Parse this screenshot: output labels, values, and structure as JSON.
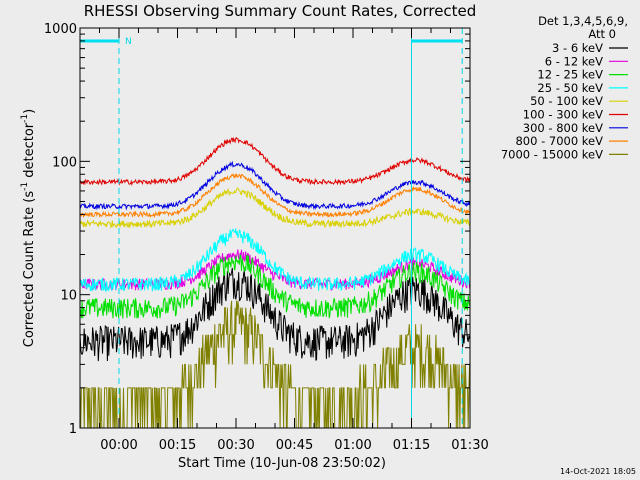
{
  "chart_data": {
    "type": "line",
    "title": "RHESSI Observing Summary Count Rates, Corrected",
    "xlabel": "Start Time (10-Jun-08 23:50:02)",
    "ylabel_main": "Corrected Count Rate (s",
    "ylabel_sup1": "-1",
    "ylabel_mid": " detector",
    "ylabel_sup2": "-1",
    "ylabel_end": ")",
    "y_scale": "log",
    "ylim": [
      1,
      1000
    ],
    "xlim_minutes": [
      0,
      100
    ],
    "x_ticks": [
      {
        "m": 10,
        "label": "00:00"
      },
      {
        "m": 25,
        "label": "00:15"
      },
      {
        "m": 40,
        "label": "00:30"
      },
      {
        "m": 55,
        "label": "00:45"
      },
      {
        "m": 70,
        "label": "01:00"
      },
      {
        "m": 85,
        "label": "01:15"
      },
      {
        "m": 100,
        "label": "01:30"
      }
    ],
    "y_ticks": [
      {
        "v": 1,
        "label": "1"
      },
      {
        "v": 10,
        "label": "10"
      },
      {
        "v": 100,
        "label": "100"
      },
      {
        "v": 1000,
        "label": "1000"
      }
    ],
    "legend_header": [
      "Det 1,3,4,5,6,9,",
      "Att 0"
    ],
    "legend_placement": "right",
    "timestamp": "14-Oct-2021 18:05",
    "flags": [
      {
        "label": "N",
        "start_min": 0,
        "end_min": 10
      },
      {
        "label": "",
        "start_min": 85,
        "end_min": 98
      }
    ],
    "vertical_markers": [
      {
        "minute": 10,
        "style": "dashed"
      },
      {
        "minute": 85,
        "style": "solid"
      },
      {
        "minute": 98,
        "style": "dashed"
      }
    ],
    "series": [
      {
        "name": "3 - 6 keV",
        "color": "#000000",
        "base": 4.5,
        "peak1": 13,
        "peak2": 11,
        "noise": 0.3
      },
      {
        "name": "6 - 12 keV",
        "color": "#e000e0",
        "base": 12,
        "peak1": 20,
        "peak2": 17,
        "noise": 0.1
      },
      {
        "name": "12 - 25 keV",
        "color": "#00e000",
        "base": 8,
        "peak1": 18,
        "peak2": 15,
        "noise": 0.18
      },
      {
        "name": "25 - 50 keV",
        "color": "#00ffff",
        "base": 12,
        "peak1": 28,
        "peak2": 20,
        "noise": 0.12
      },
      {
        "name": "50 - 100 keV",
        "color": "#d8d000",
        "base": 34,
        "peak1": 60,
        "peak2": 42,
        "noise": 0.06
      },
      {
        "name": "100 - 300 keV",
        "color": "#e00000",
        "base": 70,
        "peak1": 145,
        "peak2": 102,
        "noise": 0.04
      },
      {
        "name": "300 - 800 keV",
        "color": "#0000e0",
        "base": 46,
        "peak1": 95,
        "peak2": 70,
        "noise": 0.04
      },
      {
        "name": "800 - 7000 keV",
        "color": "#ff8000",
        "base": 40,
        "peak1": 78,
        "peak2": 62,
        "noise": 0.04
      },
      {
        "name": "7000 - 15000 keV",
        "color": "#808000",
        "base": 1.6,
        "peak1": 6,
        "peak2": 4,
        "noise": 0.5
      }
    ]
  }
}
